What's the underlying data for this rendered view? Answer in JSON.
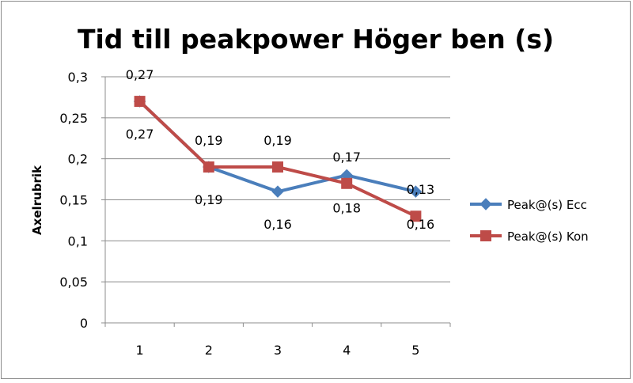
{
  "chart_data": {
    "type": "line",
    "title": "Tid till peakpower Höger ben (s)",
    "xlabel": "",
    "ylabel": "Axelrubrik",
    "categories": [
      "1",
      "2",
      "3",
      "4",
      "5"
    ],
    "ylim": [
      0,
      0.3
    ],
    "yticks": [
      "0",
      "0,05",
      "0,1",
      "0,15",
      "0,2",
      "0,25",
      "0,3"
    ],
    "grid": true,
    "legend_position": "right",
    "series": [
      {
        "name": "Peak@(s) Ecc",
        "values": [
          0.27,
          0.19,
          0.16,
          0.18,
          0.16
        ],
        "labels": [
          "0,27",
          "0,19",
          "0,16",
          "0,18",
          "0,16"
        ],
        "color": "#4a7ebb",
        "marker": "diamond"
      },
      {
        "name": "Peak@(s) Kon",
        "values": [
          0.27,
          0.19,
          0.19,
          0.17,
          0.13
        ],
        "labels": [
          "0,27",
          "0,19",
          "0,19",
          "0,17",
          "0,13"
        ],
        "color": "#be4b48",
        "marker": "square"
      }
    ]
  }
}
